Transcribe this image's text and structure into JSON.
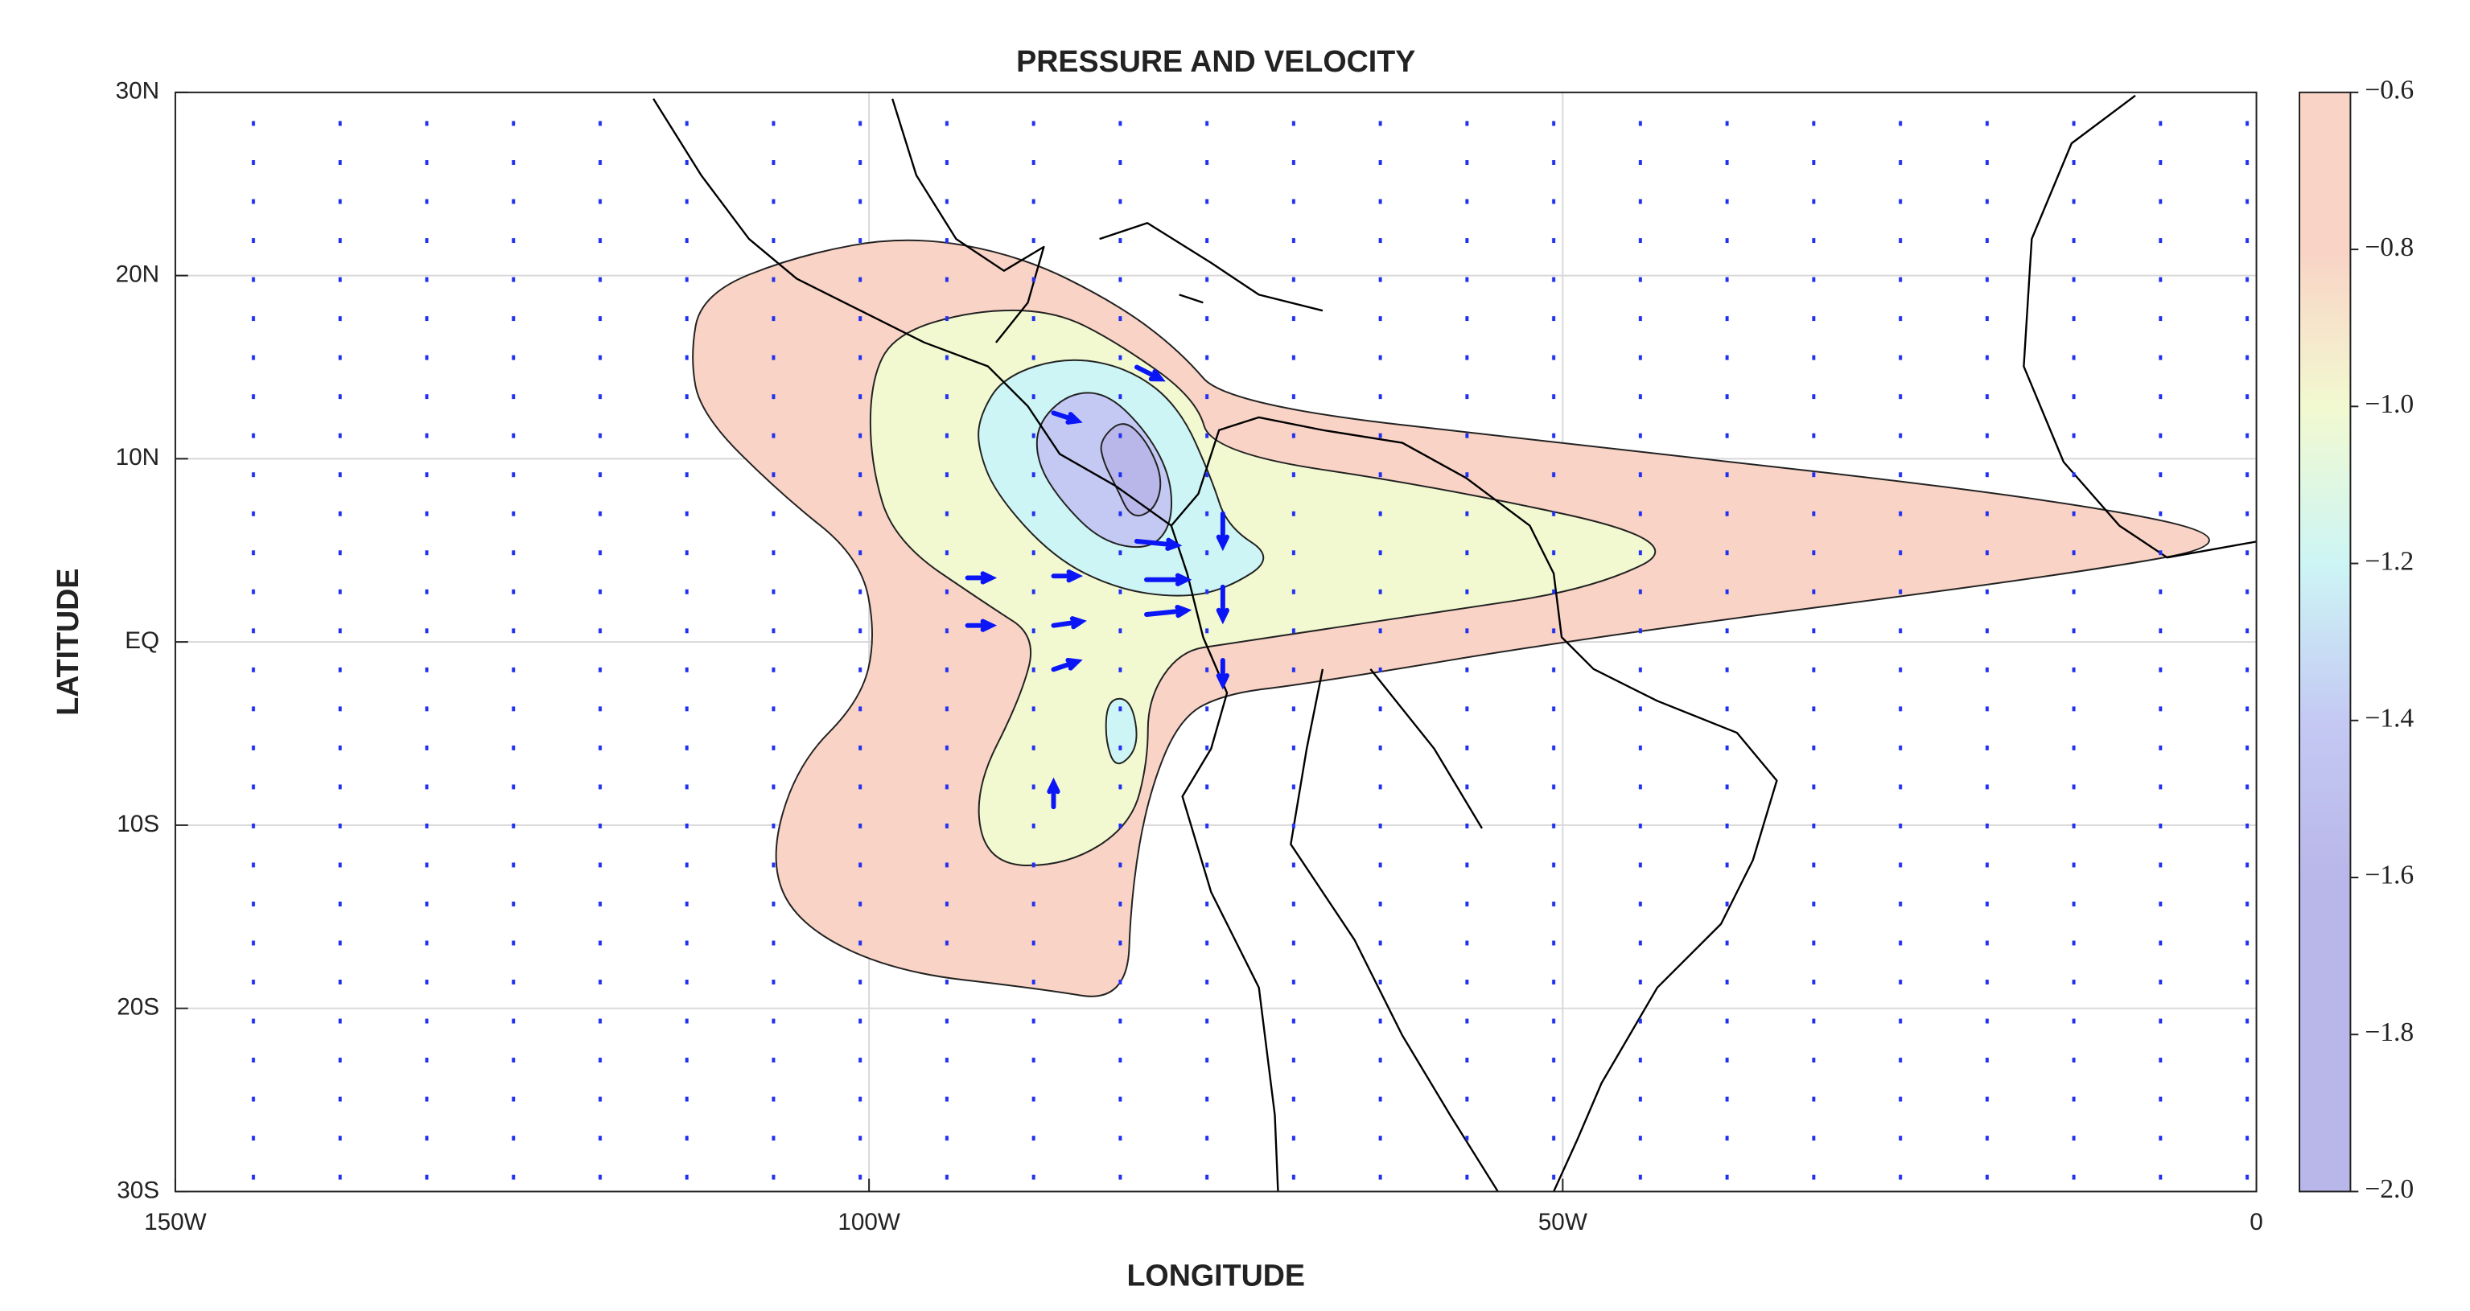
{
  "chart_data": {
    "type": "contour-map",
    "title": "PRESSURE AND VELOCITY",
    "xlabel": "LONGITUDE",
    "ylabel": "LATITUDE",
    "xlim": [
      -150,
      0
    ],
    "ylim": [
      -30,
      30
    ],
    "xticks": [
      {
        "value": -150,
        "label": "150W"
      },
      {
        "value": -100,
        "label": "100W"
      },
      {
        "value": -50,
        "label": "50W"
      },
      0
    ],
    "yticks": [
      {
        "value": -30,
        "label": "30S"
      },
      {
        "value": -20,
        "label": "20S"
      },
      {
        "value": -10,
        "label": "10S"
      },
      {
        "value": 0,
        "label": "EQ"
      },
      {
        "value": 10,
        "label": "10N"
      },
      {
        "value": 20,
        "label": "20N"
      },
      {
        "value": 30,
        "label": "30N"
      }
    ],
    "grid": true,
    "colorbar": {
      "clim": [
        -2.0,
        -0.6
      ],
      "ticks": [
        {
          "value": -0.6,
          "label": "−0.6"
        },
        {
          "value": -0.8,
          "label": "−0.8"
        },
        {
          "value": -1.0,
          "label": "−1.0"
        },
        {
          "value": -1.2,
          "label": "−1.2"
        },
        {
          "value": -1.4,
          "label": "−1.4"
        },
        {
          "value": -1.6,
          "label": "−1.6"
        },
        {
          "value": -1.8,
          "label": "−1.8"
        },
        {
          "value": -2.0,
          "label": "−2.0"
        }
      ]
    },
    "contours": [
      {
        "level": -0.8,
        "color": "#f9d3c6",
        "lon": [
          -112.9,
          -112.1,
          -105.2,
          -97.2,
          -89.1,
          -82.2,
          -77.6,
          -74.2,
          -47.8,
          -13.3,
          -0.1,
          -13.3,
          -47.8,
          -68.5,
          -74.2,
          -77.6,
          -79.9,
          -81.1,
          -81.4,
          -88.0,
          -98.3,
          -105.2,
          -107.2,
          -105.2,
          -100.6,
          -99.5,
          -100.6,
          -106.4,
          -112.1
        ],
        "lat": [
          15.5,
          19.0,
          21.1,
          22.2,
          21.1,
          18.5,
          15.9,
          12.9,
          10.7,
          7.7,
          5.5,
          3.7,
          0.3,
          -2.3,
          -2.8,
          -4.1,
          -8.4,
          -13.7,
          -19.7,
          -18.9,
          -18.0,
          -15.4,
          -11.9,
          -6.7,
          -3.2,
          0.3,
          4.6,
          8.1,
          12.4
        ]
      },
      {
        "level": -1.0,
        "color": "#f2f9d0",
        "lon": [
          -99.9,
          -98.2,
          -92.5,
          -86.7,
          -82.2,
          -76.4,
          -75.3,
          -59.2,
          -40.8,
          -47.8,
          -59.2,
          -74.2,
          -77.6,
          -79.9,
          -79.9,
          -81.1,
          -85.7,
          -91.4,
          -92.5,
          -89.1,
          -87.9,
          -91.4,
          -98.2,
          -99.9
        ],
        "lat": [
          14.2,
          16.8,
          18.1,
          18.1,
          16.4,
          13.3,
          10.3,
          8.5,
          5.5,
          2.9,
          1.6,
          -0.1,
          -0.5,
          -3.1,
          -6.5,
          -10.0,
          -12.2,
          -12.2,
          -8.2,
          -3.1,
          0.3,
          2.0,
          5.5,
          9.8
        ]
      },
      {
        "level": -1.2,
        "color": "#cdf5f5",
        "lon": [
          -92.0,
          -90.3,
          -85.7,
          -81.1,
          -77.6,
          -75.3,
          -74.2,
          -70.7,
          -74.2,
          -77.6,
          -82.2,
          -86.7,
          -90.9,
          -92.2
        ],
        "lat": [
          12.4,
          14.5,
          15.6,
          14.9,
          12.8,
          8.9,
          6.3,
          4.6,
          2.9,
          2.4,
          2.9,
          4.6,
          8.1,
          10.7
        ]
      },
      {
        "level": -1.2,
        "color": "#cdf5f5",
        "lon": [
          -82.8,
          -81.1,
          -80.5,
          -82.2,
          -83.0
        ],
        "lat": [
          -3.1,
          -3.1,
          -5.7,
          -7.0,
          -5.3
        ]
      },
      {
        "level": -1.4,
        "color": "#c4c9f3",
        "lon": [
          -87.9,
          -85.6,
          -82.8,
          -79.9,
          -78.2,
          -78.2,
          -79.9,
          -83.3,
          -86.2,
          -87.9
        ],
        "lat": [
          11.9,
          13.6,
          13.6,
          11.4,
          8.9,
          6.3,
          5.0,
          5.5,
          7.7,
          9.8
        ]
      },
      {
        "level": -1.6,
        "color": "#b9b7e9",
        "lon": [
          -83.4,
          -81.7,
          -80.0,
          -78.8,
          -79.4,
          -81.1,
          -82.2,
          -83.1
        ],
        "lat": [
          11.0,
          12.2,
          11.0,
          8.9,
          7.2,
          6.7,
          8.5,
          9.8
        ]
      }
    ],
    "vectors": {
      "color": "#0a16f5",
      "lon": [
        -92.9,
        -86.7,
        -80.7,
        -80.0,
        -80.0,
        -92.9,
        -86.7,
        -86.7,
        -74.5,
        -74.5,
        -74.5,
        -86.7,
        -80.7,
        -86.7
      ],
      "lat": [
        3.5,
        3.6,
        5.5,
        3.4,
        1.5,
        0.9,
        0.9,
        -1.5,
        7.0,
        3.0,
        -1.0,
        12.5,
        15.0,
        -9.0
      ],
      "u": [
        3,
        3,
        5,
        5,
        5,
        3,
        3.5,
        3,
        0,
        0,
        0,
        3,
        3,
        0
      ],
      "v": [
        0,
        0,
        -0.5,
        0,
        0.5,
        0,
        0.5,
        1,
        -4,
        -4,
        -3,
        -1,
        -1.5,
        3
      ]
    }
  }
}
